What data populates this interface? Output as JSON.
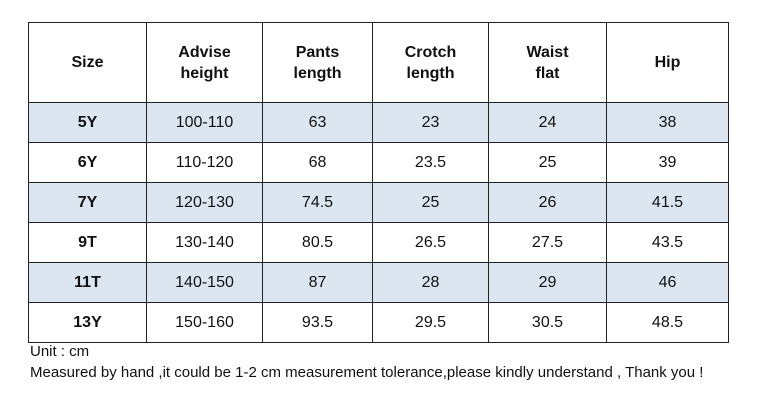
{
  "table": {
    "header": [
      [
        "Size"
      ],
      [
        "Advise",
        "height"
      ],
      [
        "Pants",
        "length"
      ],
      [
        "Crotch",
        "length"
      ],
      [
        "Waist",
        "flat"
      ],
      [
        "Hip"
      ]
    ],
    "rows": [
      [
        "5Y",
        "100-110",
        "63",
        "23",
        "24",
        "38"
      ],
      [
        "6Y",
        "110-120",
        "68",
        "23.5",
        "25",
        "39"
      ],
      [
        "7Y",
        "120-130",
        "74.5",
        "25",
        "26",
        "41.5"
      ],
      [
        "9T",
        "130-140",
        "80.5",
        "26.5",
        "27.5",
        "43.5"
      ],
      [
        "11T",
        "140-150",
        "87",
        "28",
        "29",
        "46"
      ],
      [
        "13Y",
        "150-160",
        "93.5",
        "29.5",
        "30.5",
        "48.5"
      ]
    ]
  },
  "notes": [
    "Unit : cm",
    "Measured by hand ,it could be 1-2 cm measurement tolerance,please kindly understand , Thank you !"
  ]
}
